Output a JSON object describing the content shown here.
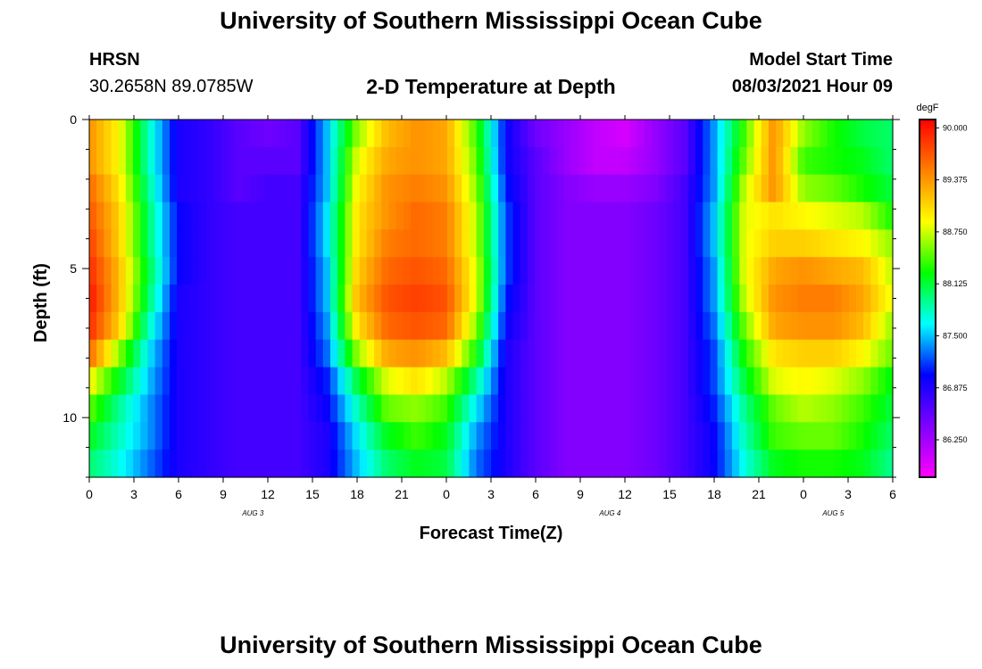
{
  "header": {
    "title": "University of Southern Mississippi Ocean Cube",
    "footer_title": "University of Southern Mississippi Ocean Cube",
    "station": "HRSN",
    "coords": "30.2658N  89.0785W",
    "chart_title": "2-D Temperature at Depth",
    "model_label": "Model Start Time",
    "model_time": "08/03/2021 Hour 09"
  },
  "colors": {
    "stops": [
      "#ff00ff",
      "#8000ff",
      "#0000ff",
      "#00ffff",
      "#00ff00",
      "#ffff00",
      "#ff8000",
      "#ff0000"
    ]
  },
  "chart_data": {
    "type": "heatmap",
    "title": "2-D Temperature at Depth",
    "xlabel": "Forecast Time(Z)",
    "ylabel": "Depth (ft)",
    "x_ticks": [
      "0",
      "3",
      "6",
      "9",
      "12",
      "15",
      "18",
      "21",
      "0",
      "3",
      "6",
      "9",
      "12",
      "15",
      "18",
      "21",
      "0",
      "3",
      "6"
    ],
    "date_labels": [
      {
        "label": "AUG 3",
        "hour": 11
      },
      {
        "label": "AUG 4",
        "hour": 35
      },
      {
        "label": "AUG 5",
        "hour": 50
      }
    ],
    "x_range_hours": [
      0,
      54
    ],
    "y_ticks": [
      0,
      5,
      10
    ],
    "y_range_ft": [
      0,
      12
    ],
    "colorbar": {
      "unit": "degF",
      "min": 85.8,
      "max": 90.1,
      "labels": [
        "90.000",
        "89.375",
        "88.750",
        "88.125",
        "87.500",
        "86.875",
        "86.250"
      ]
    },
    "depths_ft": [
      0,
      1,
      2,
      3,
      4,
      5,
      6,
      7,
      8,
      9,
      10,
      11,
      12
    ],
    "hours": [
      0,
      2,
      4,
      6,
      8,
      10,
      12,
      14,
      16,
      18,
      20,
      22,
      24,
      26,
      28,
      30,
      32,
      34,
      36,
      38,
      40,
      42,
      44,
      46,
      48,
      50,
      52,
      54
    ],
    "values_degF": [
      [
        89.4,
        88.9,
        87.8,
        86.9,
        86.8,
        86.6,
        86.5,
        86.6,
        87.5,
        88.6,
        89.2,
        89.4,
        89.3,
        88.4,
        87.0,
        86.5,
        86.3,
        86.1,
        86.0,
        86.3,
        86.6,
        87.4,
        88.4,
        89.4,
        88.6,
        88.3,
        88.1,
        88.0
      ],
      [
        89.4,
        88.9,
        87.8,
        86.9,
        86.8,
        86.6,
        86.6,
        86.6,
        87.5,
        88.8,
        89.3,
        89.4,
        89.3,
        88.5,
        87.0,
        86.6,
        86.3,
        86.1,
        86.1,
        86.3,
        86.6,
        87.4,
        88.5,
        89.4,
        88.4,
        88.3,
        88.2,
        88.0
      ],
      [
        89.6,
        89.0,
        87.9,
        86.9,
        86.8,
        86.6,
        86.7,
        86.7,
        87.5,
        88.9,
        89.4,
        89.5,
        89.4,
        88.6,
        87.1,
        86.6,
        86.4,
        86.3,
        86.3,
        86.4,
        86.7,
        87.4,
        88.7,
        89.4,
        88.6,
        88.5,
        88.3,
        88.1
      ],
      [
        89.7,
        89.1,
        88.0,
        87.0,
        86.8,
        86.7,
        86.7,
        86.7,
        87.6,
        89.0,
        89.4,
        89.6,
        89.5,
        88.7,
        87.2,
        86.6,
        86.4,
        86.4,
        86.4,
        86.5,
        86.7,
        87.5,
        88.8,
        89.0,
        88.9,
        88.8,
        88.7,
        88.3
      ],
      [
        89.8,
        89.1,
        88.0,
        87.0,
        86.8,
        86.7,
        86.7,
        86.7,
        87.6,
        89.0,
        89.5,
        89.6,
        89.5,
        88.7,
        87.2,
        86.6,
        86.4,
        86.4,
        86.4,
        86.5,
        86.7,
        87.5,
        88.8,
        89.1,
        89.1,
        89.0,
        88.9,
        88.6
      ],
      [
        89.9,
        89.2,
        88.1,
        87.0,
        86.8,
        86.7,
        86.7,
        86.7,
        87.5,
        89.1,
        89.6,
        89.7,
        89.6,
        88.8,
        87.2,
        86.6,
        86.4,
        86.4,
        86.4,
        86.5,
        86.7,
        87.4,
        88.8,
        89.3,
        89.4,
        89.3,
        89.2,
        88.7
      ],
      [
        90.0,
        89.2,
        88.0,
        86.9,
        86.8,
        86.7,
        86.7,
        86.7,
        87.5,
        89.2,
        89.7,
        89.8,
        89.7,
        88.8,
        87.1,
        86.6,
        86.4,
        86.4,
        86.4,
        86.5,
        86.7,
        87.4,
        88.7,
        89.4,
        89.5,
        89.5,
        89.3,
        88.8
      ],
      [
        89.9,
        89.1,
        87.8,
        86.9,
        86.8,
        86.7,
        86.7,
        86.7,
        87.4,
        89.0,
        89.6,
        89.7,
        89.6,
        88.6,
        87.0,
        86.6,
        86.4,
        86.4,
        86.4,
        86.5,
        86.7,
        87.3,
        88.5,
        89.3,
        89.4,
        89.4,
        89.2,
        88.6
      ],
      [
        89.6,
        88.6,
        87.6,
        86.9,
        86.8,
        86.7,
        86.7,
        86.7,
        87.3,
        88.6,
        89.3,
        89.4,
        89.2,
        88.3,
        86.9,
        86.6,
        86.4,
        86.4,
        86.4,
        86.5,
        86.7,
        87.2,
        88.3,
        89.0,
        89.1,
        89.1,
        88.9,
        88.5
      ],
      [
        88.9,
        88.2,
        87.5,
        86.9,
        86.8,
        86.7,
        86.7,
        86.7,
        87.1,
        88.1,
        88.8,
        89.0,
        88.7,
        87.9,
        86.9,
        86.6,
        86.4,
        86.4,
        86.4,
        86.5,
        86.7,
        87.2,
        88.1,
        88.8,
        88.9,
        88.8,
        88.6,
        88.2
      ],
      [
        88.5,
        87.9,
        87.4,
        86.9,
        86.8,
        86.7,
        86.7,
        86.7,
        87.0,
        87.8,
        88.5,
        88.6,
        88.4,
        87.6,
        86.9,
        86.6,
        86.4,
        86.4,
        86.4,
        86.5,
        86.7,
        87.1,
        87.9,
        88.5,
        88.7,
        88.6,
        88.4,
        88.1
      ],
      [
        88.2,
        87.8,
        87.4,
        86.9,
        86.8,
        86.7,
        86.7,
        86.7,
        86.9,
        87.6,
        88.2,
        88.4,
        88.2,
        87.4,
        86.9,
        86.6,
        86.4,
        86.4,
        86.4,
        86.5,
        86.7,
        87.0,
        87.8,
        88.4,
        88.5,
        88.5,
        88.3,
        88.0
      ],
      [
        88.0,
        87.7,
        87.3,
        86.9,
        86.8,
        86.7,
        86.7,
        86.7,
        86.9,
        87.5,
        88.0,
        88.2,
        88.1,
        87.3,
        86.9,
        86.6,
        86.4,
        86.4,
        86.4,
        86.5,
        86.7,
        87.0,
        87.7,
        88.2,
        88.3,
        88.3,
        88.2,
        87.9
      ]
    ]
  }
}
